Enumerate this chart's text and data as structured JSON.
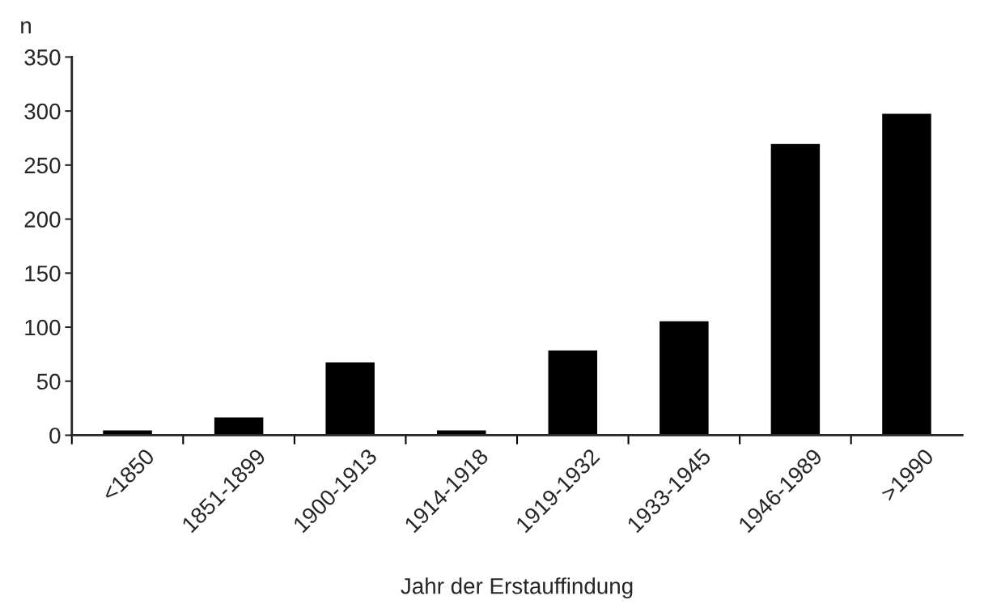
{
  "chart_data": {
    "type": "bar",
    "ylabel": "n",
    "xlabel": "Jahr der Erstauffindung",
    "categories": [
      "<1850",
      "1851-1899",
      "1900-1913",
      "1914-1918",
      "1919-1932",
      "1933-1945",
      "1946-1989",
      ">1990"
    ],
    "values": [
      5,
      17,
      68,
      5,
      79,
      106,
      270,
      298
    ],
    "color": "#000000",
    "ylim": [
      0,
      350
    ],
    "yticks": [
      0,
      50,
      100,
      150,
      200,
      250,
      300,
      350
    ],
    "grid": false,
    "legend": false
  }
}
